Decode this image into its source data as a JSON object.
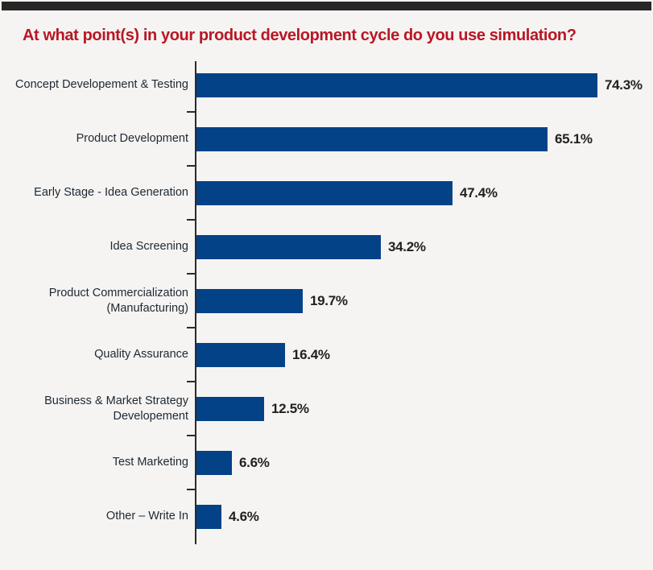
{
  "page": {
    "background_color": "#f5f4f2",
    "top_bar_color": "#292627"
  },
  "chart_data": {
    "type": "bar",
    "orientation": "horizontal",
    "title": "At what point(s) in your product development cycle do you use simulation?",
    "categories": [
      "Concept Developement & Testing",
      "Product Development",
      "Early Stage - Idea Generation",
      "Idea Screening",
      "Product Commercialization (Manufacturing)",
      "Quality Assurance",
      "Business & Market Strategy Developement",
      "Test Marketing",
      "Other – Write In"
    ],
    "values": [
      74.3,
      65.1,
      47.4,
      34.2,
      19.7,
      16.4,
      12.5,
      6.6,
      4.6
    ],
    "value_labels": [
      "74.3%",
      "65.1%",
      "47.4%",
      "34.2%",
      "19.7%",
      "16.4%",
      "12.5%",
      "6.6%",
      "4.6%"
    ],
    "unit": "%",
    "grid": false,
    "legend": false,
    "x_axis_labels_visible": false,
    "title_color": "#b81724",
    "bar_color": "#044287",
    "axis_color": "#2b2b2b",
    "category_label_color": "#1e2834",
    "value_label_color": "#231f20"
  }
}
